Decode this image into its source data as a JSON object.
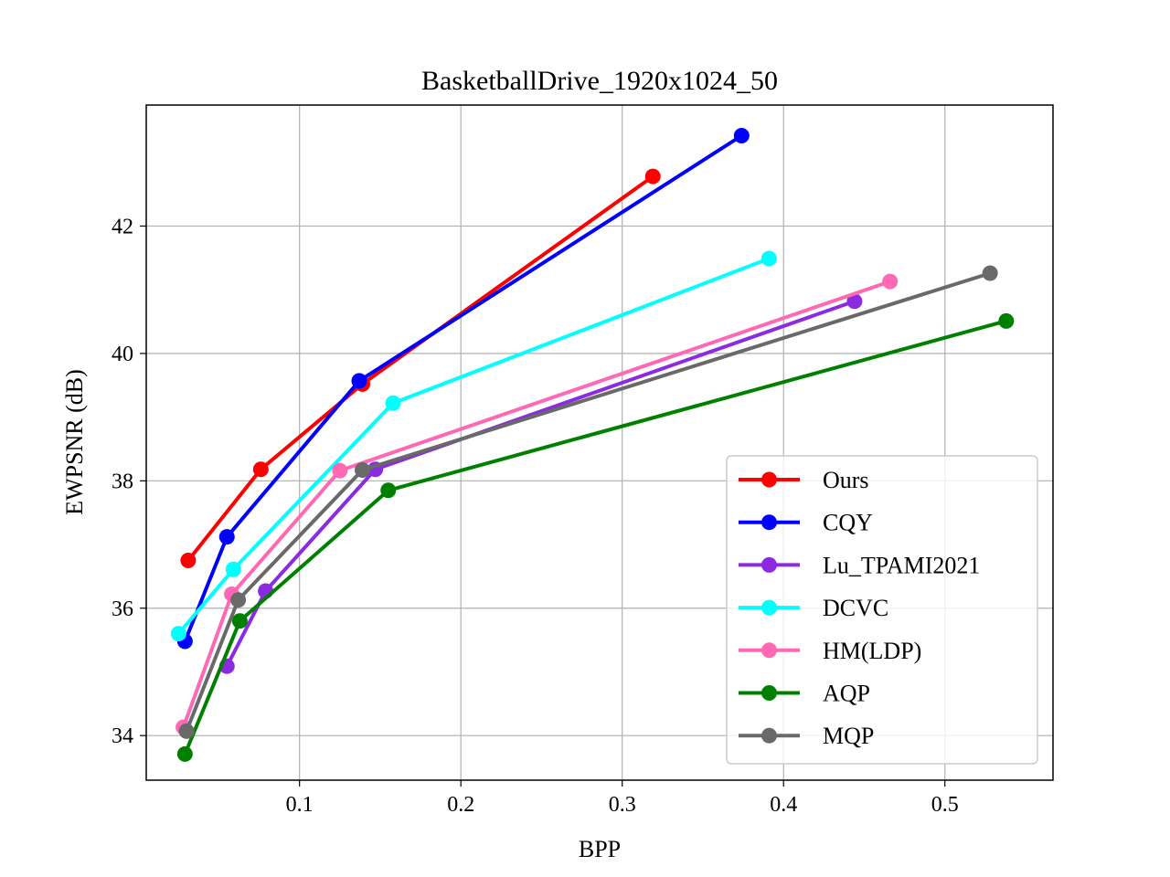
{
  "chart_data": {
    "type": "line",
    "title": "BasketballDrive_1920x1024_50",
    "xlabel": "BPP",
    "ylabel": "EWPSNR (dB)",
    "xlim": [
      0.005,
      0.567
    ],
    "ylim": [
      33.3,
      43.9
    ],
    "xticks": [
      0.1,
      0.2,
      0.3,
      0.4,
      0.5
    ],
    "yticks": [
      34,
      36,
      38,
      40,
      42
    ],
    "xtick_labels": [
      "0.1",
      "0.2",
      "0.3",
      "0.4",
      "0.5"
    ],
    "ytick_labels": [
      "34",
      "36",
      "38",
      "40",
      "42"
    ],
    "grid": true,
    "legend_position": "lower-right",
    "series": [
      {
        "name": "Ours",
        "color": "#ff0000",
        "x": [
          0.031,
          0.076,
          0.139,
          0.319
        ],
        "y": [
          36.75,
          38.18,
          39.52,
          42.78
        ]
      },
      {
        "name": "CQY",
        "color": "#0000ff",
        "x": [
          0.029,
          0.055,
          0.137,
          0.374
        ],
        "y": [
          35.48,
          37.12,
          39.57,
          43.42
        ]
      },
      {
        "name": "Lu_TPAMI2021",
        "color": "#8a2be2",
        "x": [
          0.055,
          0.079,
          0.147,
          0.444
        ],
        "y": [
          35.09,
          36.27,
          38.18,
          40.82
        ]
      },
      {
        "name": "DCVC",
        "color": "#00ffff",
        "x": [
          0.025,
          0.059,
          0.158,
          0.391
        ],
        "y": [
          35.6,
          36.61,
          39.22,
          41.49
        ]
      },
      {
        "name": "HM(LDP)",
        "color": "#ff69b4",
        "x": [
          0.028,
          0.058,
          0.125,
          0.466
        ],
        "y": [
          34.13,
          36.22,
          38.16,
          41.13
        ]
      },
      {
        "name": "AQP",
        "color": "#008000",
        "x": [
          0.029,
          0.063,
          0.155,
          0.538
        ],
        "y": [
          33.71,
          35.8,
          37.85,
          40.51
        ]
      },
      {
        "name": "MQP",
        "color": "#696969",
        "x": [
          0.03,
          0.062,
          0.139,
          0.528
        ],
        "y": [
          34.07,
          36.13,
          38.17,
          41.26
        ]
      }
    ]
  }
}
